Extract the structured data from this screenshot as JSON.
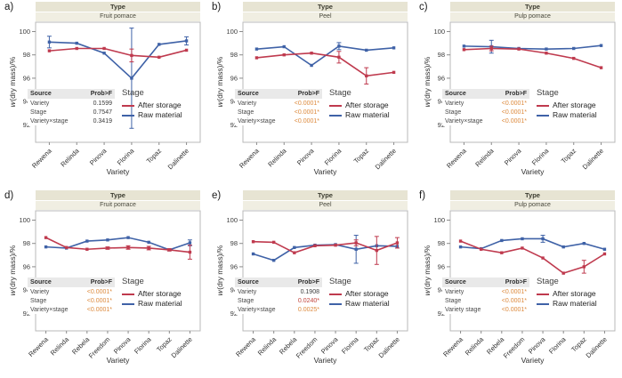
{
  "figure": {
    "group_header": "Type",
    "legend_title": "Stage",
    "xlabel": "Variety",
    "ylabel_italic": "w",
    "ylabel_rest": "(dry mass)/%",
    "stats_source_label": "Source",
    "stats_prob_label": "Prob>F",
    "yticks": [
      92,
      94,
      96,
      98,
      100
    ],
    "ylim": [
      90.5,
      100.8
    ],
    "colors": {
      "after_storage": "#bf3a4e",
      "raw_material": "#3f62a7",
      "plain": "#3b3b3b",
      "orange": "#dd8a3d",
      "red": "#c2443c"
    }
  },
  "chart_data": [
    {
      "type": "line",
      "letter": "a)",
      "group_label": "Fruit pomace",
      "categories": [
        "Rewena",
        "Relinda",
        "Pinova",
        "Florina",
        "Topaz",
        "Dalinette"
      ],
      "series": [
        {
          "name": "After storage",
          "color_key": "after_storage",
          "values": [
            98.35,
            98.55,
            98.55,
            97.95,
            97.8,
            98.4
          ],
          "err": [
            0,
            0,
            0,
            0.55,
            0,
            0
          ]
        },
        {
          "name": "Raw material",
          "color_key": "raw_material",
          "values": [
            99.1,
            99.0,
            98.15,
            96.0,
            98.9,
            99.2
          ],
          "err": [
            0.5,
            0,
            0,
            4.3,
            0,
            0.35
          ]
        }
      ],
      "stats": [
        {
          "source": "Variety",
          "prob": "0.1599",
          "color": "plain"
        },
        {
          "source": "Stage",
          "prob": "0.7547",
          "color": "plain"
        },
        {
          "source": "Variety×stage",
          "prob": "0.3419",
          "color": "plain"
        }
      ]
    },
    {
      "type": "line",
      "letter": "b)",
      "group_label": "Peel",
      "categories": [
        "Rewena",
        "Relinda",
        "Pinova",
        "Florina",
        "Topaz",
        "Dalinette"
      ],
      "series": [
        {
          "name": "After storage",
          "color_key": "after_storage",
          "values": [
            97.75,
            98.0,
            98.15,
            97.8,
            96.2,
            96.5
          ],
          "err": [
            0,
            0,
            0,
            0.5,
            0.7,
            0
          ]
        },
        {
          "name": "Raw material",
          "color_key": "raw_material",
          "values": [
            98.5,
            98.7,
            97.1,
            98.75,
            98.4,
            98.6
          ],
          "err": [
            0,
            0,
            0,
            0.3,
            0,
            0
          ]
        }
      ],
      "stats": [
        {
          "source": "Variety",
          "prob": "<0.0001*",
          "color": "orange"
        },
        {
          "source": "Stage",
          "prob": "<0.0001*",
          "color": "orange"
        },
        {
          "source": "Variety×stage",
          "prob": "<0.0001*",
          "color": "orange"
        }
      ]
    },
    {
      "type": "line",
      "letter": "c)",
      "group_label": "Pulp pomace",
      "categories": [
        "Rewena",
        "Relinda",
        "Pinova",
        "Florina",
        "Topaz",
        "Dalinette"
      ],
      "series": [
        {
          "name": "After storage",
          "color_key": "after_storage",
          "values": [
            98.45,
            98.55,
            98.5,
            98.15,
            97.7,
            96.9
          ],
          "err": [
            0,
            0.2,
            0,
            0,
            0,
            0
          ]
        },
        {
          "name": "Raw material",
          "color_key": "raw_material",
          "values": [
            98.75,
            98.7,
            98.55,
            98.5,
            98.55,
            98.8
          ],
          "err": [
            0,
            0.55,
            0,
            0,
            0,
            0
          ]
        }
      ],
      "stats": [
        {
          "source": "Variety",
          "prob": "<0.0001*",
          "color": "orange"
        },
        {
          "source": "Stage",
          "prob": "<0.0001*",
          "color": "orange"
        },
        {
          "source": "Variety×stage",
          "prob": "<0.0001*",
          "color": "orange"
        }
      ]
    },
    {
      "type": "line",
      "letter": "d)",
      "group_label": "Fruit pomace",
      "categories": [
        "Rewena",
        "Relinda",
        "Rebela",
        "Freedom",
        "Pinova",
        "Florina",
        "Topaz",
        "Dalinette"
      ],
      "series": [
        {
          "name": "After storage",
          "color_key": "after_storage",
          "values": [
            98.5,
            97.65,
            97.5,
            97.6,
            97.65,
            97.6,
            97.45,
            97.25
          ],
          "err": [
            0,
            0,
            0,
            0.1,
            0.15,
            0.15,
            0.1,
            0.6
          ]
        },
        {
          "name": "Raw material",
          "color_key": "raw_material",
          "values": [
            97.7,
            97.6,
            98.2,
            98.3,
            98.5,
            98.1,
            97.45,
            98.05
          ],
          "err": [
            0,
            0,
            0,
            0,
            0,
            0,
            0,
            0.25
          ]
        }
      ],
      "stats": [
        {
          "source": "Variety",
          "prob": "<0.0001*",
          "color": "orange"
        },
        {
          "source": "Stage",
          "prob": "<0.0001*",
          "color": "orange"
        },
        {
          "source": "Variety×stage",
          "prob": "<0.0001*",
          "color": "orange"
        }
      ]
    },
    {
      "type": "line",
      "letter": "e)",
      "group_label": "Peel",
      "categories": [
        "Rewena",
        "Relinda",
        "Rebela",
        "Freedom",
        "Pinova",
        "Florina",
        "Topaz",
        "Dalinette"
      ],
      "series": [
        {
          "name": "After storage",
          "color_key": "after_storage",
          "values": [
            98.15,
            98.1,
            97.2,
            97.8,
            97.85,
            98.05,
            97.4,
            98.05
          ],
          "err": [
            0,
            0,
            0,
            0,
            0,
            0.25,
            1.2,
            0.45
          ]
        },
        {
          "name": "Raw material",
          "color_key": "raw_material",
          "values": [
            97.1,
            96.55,
            97.65,
            97.85,
            97.9,
            97.5,
            97.8,
            97.75
          ],
          "err": [
            0,
            0,
            0,
            0,
            0,
            1.2,
            0,
            0
          ]
        }
      ],
      "stats": [
        {
          "source": "Variety",
          "prob": "0.1908",
          "color": "plain"
        },
        {
          "source": "Stage",
          "prob": "0.0240*",
          "color": "red"
        },
        {
          "source": "Variety×stage",
          "prob": "0.0025*",
          "color": "orange"
        }
      ]
    },
    {
      "type": "line",
      "letter": "f)",
      "group_label": "Pulp pomace",
      "categories": [
        "Rewena",
        "Relinda",
        "Rebela",
        "Freedom",
        "Pinova",
        "Florina",
        "Topaz",
        "Dalinette"
      ],
      "series": [
        {
          "name": "After storage",
          "color_key": "after_storage",
          "values": [
            98.2,
            97.5,
            97.2,
            97.6,
            96.75,
            95.45,
            96.0,
            97.1
          ],
          "err": [
            0,
            0,
            0,
            0,
            0,
            0,
            0.55,
            0
          ]
        },
        {
          "name": "Raw material",
          "color_key": "raw_material",
          "values": [
            97.7,
            97.55,
            98.25,
            98.4,
            98.4,
            97.7,
            98.0,
            97.5
          ],
          "err": [
            0,
            0,
            0,
            0,
            0.3,
            0,
            0,
            0
          ]
        }
      ],
      "stats": [
        {
          "source": "Variety",
          "prob": "<0.0001*",
          "color": "orange"
        },
        {
          "source": "Stage",
          "prob": "<0.0001*",
          "color": "orange"
        },
        {
          "source": "Variety stage",
          "prob": "<0.0001*",
          "color": "orange"
        }
      ]
    }
  ]
}
